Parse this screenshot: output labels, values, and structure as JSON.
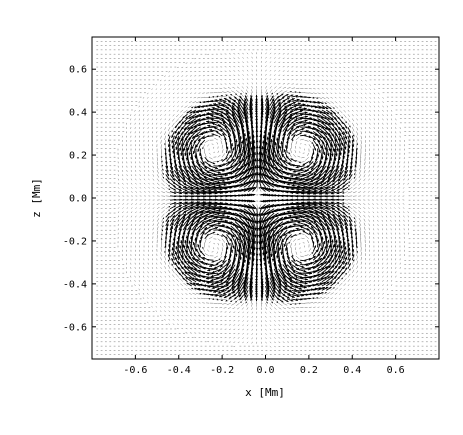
{
  "chart_data": {
    "type": "vector-field",
    "title": "",
    "xlabel": "x [Mm]",
    "ylabel": "z [Mm]",
    "xlim": [
      -0.8,
      0.8
    ],
    "ylim": [
      -0.75,
      0.75
    ],
    "grid": false,
    "legend": "none",
    "x_ticks": [
      -0.6,
      -0.4,
      -0.2,
      0.0,
      0.2,
      0.4,
      0.6
    ],
    "x_tick_labels": [
      "-0.6",
      "-0.4",
      "-0.2",
      "0.0",
      "0.2",
      "0.4",
      "0.6"
    ],
    "y_ticks": [
      0.6,
      0.4,
      0.2,
      0.0,
      -0.2,
      -0.4,
      -0.6
    ],
    "y_tick_labels": [
      "0.6",
      "0.4",
      "0.2",
      "0.0",
      "-0.2",
      "-0.4",
      "-0.6"
    ],
    "field": {
      "description_from_image": "Four counter-rotating circulation cells inside a circular region of radius ~0.55 Mm",
      "vortices": [
        {
          "center": [
            -0.22,
            0.22
          ],
          "rotation": "counterclockwise"
        },
        {
          "center": [
            0.15,
            0.22
          ],
          "rotation": "clockwise"
        },
        {
          "center": [
            -0.22,
            -0.22
          ],
          "rotation": "clockwise"
        },
        {
          "center": [
            0.15,
            -0.22
          ],
          "rotation": "counterclockwise"
        }
      ],
      "region_radius": 0.55,
      "grid_spacing": 0.04
    },
    "colors": {
      "arrows": "#000000",
      "frame": "#000000"
    }
  }
}
